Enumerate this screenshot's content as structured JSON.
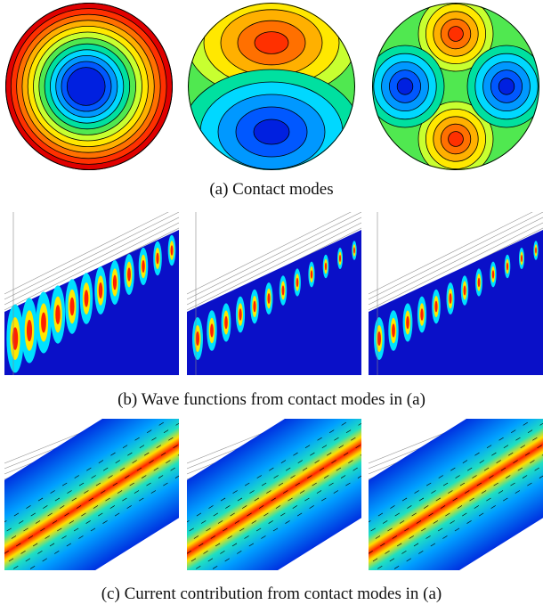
{
  "figure": {
    "rows": [
      {
        "caption": "(a) Contact modes"
      },
      {
        "caption": "(b) Wave functions from contact modes in (a)"
      },
      {
        "caption": "(c) Current contribution from contact modes in (a)"
      }
    ]
  }
}
